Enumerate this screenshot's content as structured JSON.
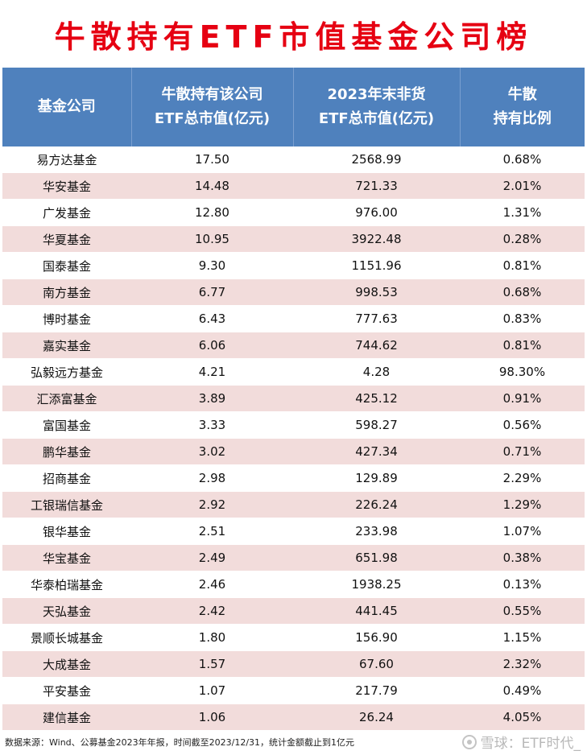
{
  "title": "牛散持有ETF市值基金公司榜",
  "table": {
    "headers": [
      [
        "基金公司"
      ],
      [
        "牛散持有该公司",
        "ETF总市值(亿元)"
      ],
      [
        "2023年末非货",
        "ETF总市值(亿元)"
      ],
      [
        "牛散",
        "持有比例"
      ]
    ],
    "rows": [
      [
        "易方达基金",
        "17.50",
        "2568.99",
        "0.68%"
      ],
      [
        "华安基金",
        "14.48",
        "721.33",
        "2.01%"
      ],
      [
        "广发基金",
        "12.80",
        "976.00",
        "1.31%"
      ],
      [
        "华夏基金",
        "10.95",
        "3922.48",
        "0.28%"
      ],
      [
        "国泰基金",
        "9.30",
        "1151.96",
        "0.81%"
      ],
      [
        "南方基金",
        "6.77",
        "998.53",
        "0.68%"
      ],
      [
        "博时基金",
        "6.43",
        "777.63",
        "0.83%"
      ],
      [
        "嘉实基金",
        "6.06",
        "744.62",
        "0.81%"
      ],
      [
        "弘毅远方基金",
        "4.21",
        "4.28",
        "98.30%"
      ],
      [
        "汇添富基金",
        "3.89",
        "425.12",
        "0.91%"
      ],
      [
        "富国基金",
        "3.33",
        "598.27",
        "0.56%"
      ],
      [
        "鹏华基金",
        "3.02",
        "427.34",
        "0.71%"
      ],
      [
        "招商基金",
        "2.98",
        "129.89",
        "2.29%"
      ],
      [
        "工银瑞信基金",
        "2.92",
        "226.24",
        "1.29%"
      ],
      [
        "银华基金",
        "2.51",
        "233.98",
        "1.07%"
      ],
      [
        "华宝基金",
        "2.49",
        "651.98",
        "0.38%"
      ],
      [
        "华泰柏瑞基金",
        "2.46",
        "1938.25",
        "0.13%"
      ],
      [
        "天弘基金",
        "2.42",
        "441.45",
        "0.55%"
      ],
      [
        "景顺长城基金",
        "1.80",
        "156.90",
        "1.15%"
      ],
      [
        "大成基金",
        "1.57",
        "67.60",
        "2.32%"
      ],
      [
        "平安基金",
        "1.07",
        "217.79",
        "0.49%"
      ],
      [
        "建信基金",
        "1.06",
        "26.24",
        "4.05%"
      ]
    ]
  },
  "footer": {
    "source": "数据来源：Wind、公募基金2023年年报，时间截至2023/12/31，统计金额截止到1亿元",
    "watermark": "雪球：ETF时代_",
    "watermark_icon": "snowball-logo-icon"
  },
  "colors": {
    "title": "#e60012",
    "header_bg": "#4f81bd",
    "row_alt": "#f2dcdb"
  }
}
